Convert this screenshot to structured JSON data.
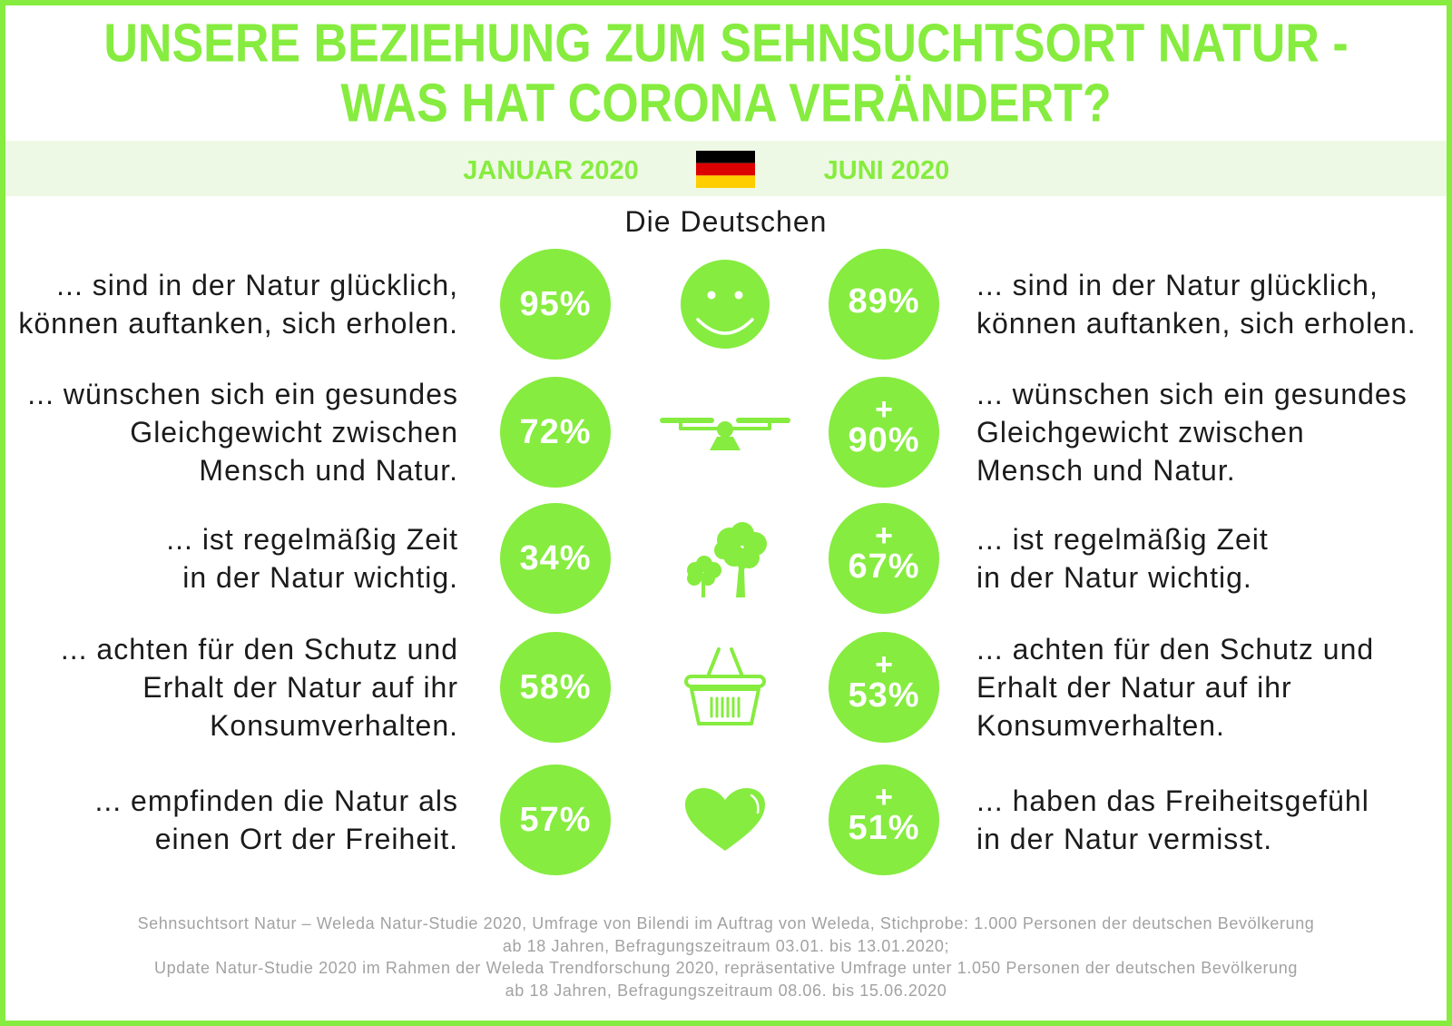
{
  "colors": {
    "accent": "#86ec3f",
    "band": "#eef9e5",
    "text": "#1b1b1b",
    "footer": "#a2a2a2",
    "flag": [
      "#000000",
      "#dd0000",
      "#ffce00"
    ]
  },
  "title": {
    "line1": "UNSERE BEZIEHUNG ZUM SEHNSUCHTSORT NATUR -",
    "line2": "WAS HAT CORONA VERÄNDERT?"
  },
  "periods": {
    "left": "JANUAR 2020",
    "right": "JUNI 2020",
    "flag_icon": "germany-flag-icon"
  },
  "subtitle": "Die Deutschen",
  "rows": [
    {
      "left_lines": [
        "... sind in der Natur glücklich,",
        "können auftanken, sich erholen."
      ],
      "left_value": "95%",
      "icon": "smiley-icon",
      "right_marker": "",
      "right_value": "89%",
      "right_lines": [
        "... sind in der Natur glücklich,",
        "können auftanken, sich erholen."
      ]
    },
    {
      "left_lines": [
        "... wünschen sich ein gesundes",
        "Gleichgewicht zwischen",
        "Mensch und Natur."
      ],
      "left_value": "72%",
      "icon": "balance-scale-icon",
      "right_marker": "+",
      "right_value": "90%",
      "right_lines": [
        "... wünschen sich ein gesundes",
        "Gleichgewicht zwischen",
        "Mensch und Natur."
      ]
    },
    {
      "left_lines": [
        "... ist regelmäßig Zeit",
        "in der Natur wichtig."
      ],
      "left_value": "34%",
      "icon": "trees-icon",
      "right_marker": "+",
      "right_value": "67%",
      "right_lines": [
        "... ist regelmäßig Zeit",
        "in der Natur wichtig."
      ]
    },
    {
      "left_lines": [
        "... achten für den Schutz und",
        "Erhalt der Natur auf ihr",
        "Konsumverhalten."
      ],
      "left_value": "58%",
      "icon": "shopping-basket-icon",
      "right_marker": "+",
      "right_value": "53%",
      "right_lines": [
        "... achten für den Schutz und",
        "Erhalt der Natur auf ihr",
        "Konsumverhalten."
      ]
    },
    {
      "left_lines": [
        "... empfinden die Natur als",
        "einen Ort der Freiheit."
      ],
      "left_value": "57%",
      "icon": "heart-icon",
      "right_marker": "+",
      "right_value": "51%",
      "right_lines": [
        "... haben das Freiheitsgefühl",
        "in der Natur vermisst."
      ]
    }
  ],
  "footer": [
    "Sehnsuchtsort Natur – Weleda Natur-Studie 2020, Umfrage von Bilendi im Auftrag von Weleda, Stichprobe: 1.000 Personen der deutschen Bevölkerung",
    "ab 18 Jahren, Befragungszeitraum 03.01. bis 13.01.2020;",
    "Update Natur-Studie 2020 im Rahmen der Weleda Trendforschung 2020, repräsentative Umfrage unter 1.050 Personen der deutschen Bevölkerung",
    "ab 18 Jahren, Befragungszeitraum 08.06. bis 15.06.2020"
  ]
}
